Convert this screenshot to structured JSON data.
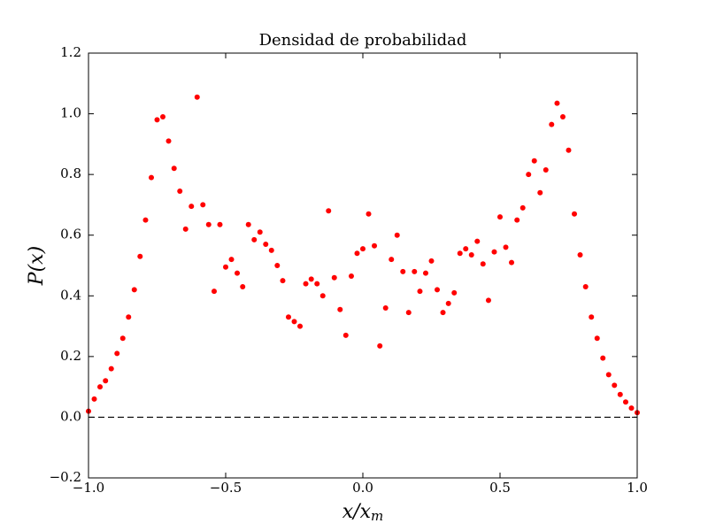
{
  "chart_data": {
    "type": "scatter",
    "title": "Densidad de probabilidad",
    "xlabel": {
      "main": "x/x",
      "sub": "m"
    },
    "ylabel": "P(x)",
    "color": "#ff0000",
    "x": [
      -1.0,
      -0.979,
      -0.958,
      -0.938,
      -0.917,
      -0.896,
      -0.875,
      -0.854,
      -0.833,
      -0.812,
      -0.792,
      -0.771,
      -0.75,
      -0.729,
      -0.708,
      -0.688,
      -0.667,
      -0.646,
      -0.625,
      -0.604,
      -0.583,
      -0.562,
      -0.542,
      -0.521,
      -0.5,
      -0.479,
      -0.458,
      -0.438,
      -0.417,
      -0.396,
      -0.375,
      -0.354,
      -0.333,
      -0.312,
      -0.292,
      -0.271,
      -0.25,
      -0.229,
      -0.208,
      -0.188,
      -0.167,
      -0.146,
      -0.125,
      -0.104,
      -0.083,
      -0.062,
      -0.042,
      -0.021,
      0.0,
      0.021,
      0.042,
      0.062,
      0.083,
      0.104,
      0.125,
      0.146,
      0.167,
      0.188,
      0.208,
      0.229,
      0.25,
      0.271,
      0.292,
      0.312,
      0.333,
      0.354,
      0.375,
      0.396,
      0.417,
      0.438,
      0.458,
      0.479,
      0.5,
      0.521,
      0.542,
      0.562,
      0.583,
      0.604,
      0.625,
      0.646,
      0.667,
      0.688,
      0.708,
      0.729,
      0.75,
      0.771,
      0.792,
      0.812,
      0.833,
      0.854,
      0.875,
      0.896,
      0.917,
      0.938,
      0.958,
      0.979,
      1.0
    ],
    "values": [
      0.02,
      0.06,
      0.1,
      0.12,
      0.16,
      0.21,
      0.26,
      0.33,
      0.42,
      0.53,
      0.65,
      0.79,
      0.98,
      0.99,
      0.91,
      0.82,
      0.745,
      0.62,
      0.695,
      1.055,
      0.7,
      0.635,
      0.415,
      0.635,
      0.495,
      0.52,
      0.475,
      0.43,
      0.635,
      0.585,
      0.61,
      0.57,
      0.55,
      0.5,
      0.45,
      0.33,
      0.315,
      0.3,
      0.44,
      0.455,
      0.44,
      0.4,
      0.68,
      0.46,
      0.355,
      0.27,
      0.465,
      0.54,
      0.555,
      0.67,
      0.565,
      0.235,
      0.36,
      0.52,
      0.6,
      0.48,
      0.345,
      0.48,
      0.415,
      0.475,
      0.515,
      0.42,
      0.345,
      0.375,
      0.41,
      0.54,
      0.555,
      0.535,
      0.58,
      0.505,
      0.385,
      0.545,
      0.66,
      0.56,
      0.51,
      0.65,
      0.69,
      0.8,
      0.845,
      0.74,
      0.815,
      0.965,
      1.035,
      0.99,
      0.88,
      0.67,
      0.535,
      0.43,
      0.33,
      0.26,
      0.195,
      0.14,
      0.105,
      0.075,
      0.05,
      0.03,
      0.015
    ],
    "xlim": [
      -1.0,
      1.0
    ],
    "xticks": [
      {
        "value": -1.0,
        "label": "−1.0"
      },
      {
        "value": -0.5,
        "label": "−0.5"
      },
      {
        "value": 0.0,
        "label": "0.0"
      },
      {
        "value": 0.5,
        "label": "0.5"
      },
      {
        "value": 1.0,
        "label": "1.0"
      }
    ],
    "ylim": [
      -0.2,
      1.2
    ],
    "yticks": [
      {
        "value": -0.2,
        "label": "−0.2"
      },
      {
        "value": 0.0,
        "label": "0.0"
      },
      {
        "value": 0.2,
        "label": "0.2"
      },
      {
        "value": 0.4,
        "label": "0.4"
      },
      {
        "value": 0.6,
        "label": "0.6"
      },
      {
        "value": 0.8,
        "label": "0.8"
      },
      {
        "value": 1.0,
        "label": "1.0"
      },
      {
        "value": 1.2,
        "label": "1.2"
      }
    ],
    "reference_line": {
      "y": 0,
      "style": "dashed"
    }
  }
}
